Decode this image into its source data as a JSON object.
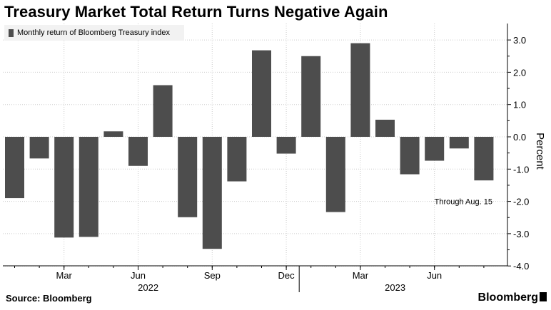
{
  "header": {
    "title": "Treasury Market Total Return Turns Negative Again"
  },
  "footer": {
    "source": "Source: Bloomberg",
    "brand": "Bloomberg"
  },
  "colors": {
    "bar": "#4d4d4d",
    "grid": "#cccccc",
    "legend_bg": "#f2f2f2",
    "axis": "#000000"
  },
  "chart_data": {
    "type": "bar",
    "title": "Treasury Market Total Return Turns Negative Again",
    "legend": [
      "Monthly return of Bloomberg Treasury index"
    ],
    "ylabel": "Percent",
    "ylim": [
      -4.0,
      3.3
    ],
    "yticks": [
      3.0,
      2.0,
      1.0,
      0.0,
      -1.0,
      -2.0,
      -3.0,
      -4.0
    ],
    "ytick_labels": [
      "3.0",
      "2.0",
      "1.0",
      "0.0",
      "-1.0",
      "-2.0",
      "-3.0",
      "-4.0"
    ],
    "categories": [
      "Jan 2022",
      "Feb 2022",
      "Mar 2022",
      "Apr 2022",
      "May 2022",
      "Jun 2022",
      "Jul 2022",
      "Aug 2022",
      "Sep 2022",
      "Oct 2022",
      "Nov 2022",
      "Dec 2022",
      "Jan 2023",
      "Feb 2023",
      "Mar 2023",
      "Apr 2023",
      "May 2023",
      "Jun 2023",
      "Jul 2023",
      "Aug 2023"
    ],
    "series": [
      {
        "name": "Monthly return of Bloomberg Treasury index",
        "values": [
          -1.9,
          -0.67,
          -3.12,
          -3.1,
          0.17,
          -0.9,
          1.6,
          -2.49,
          -3.47,
          -1.38,
          2.68,
          -0.52,
          2.5,
          -2.33,
          2.9,
          0.53,
          -1.16,
          -0.74,
          -0.36,
          -1.35
        ]
      }
    ],
    "x_major_ticks": [
      {
        "label": "Mar",
        "index": 2
      },
      {
        "label": "Jun",
        "index": 5
      },
      {
        "label": "Sep",
        "index": 8
      },
      {
        "label": "Dec",
        "index": 11
      },
      {
        "label": "Mar",
        "index": 14
      },
      {
        "label": "Jun",
        "index": 17
      }
    ],
    "years": [
      {
        "label": "2022",
        "start": 0,
        "end": 11
      },
      {
        "label": "2023",
        "start": 12,
        "end": 19
      }
    ],
    "annotation": {
      "text": "Through Aug. 15",
      "index": 18,
      "value": -2.0
    }
  }
}
